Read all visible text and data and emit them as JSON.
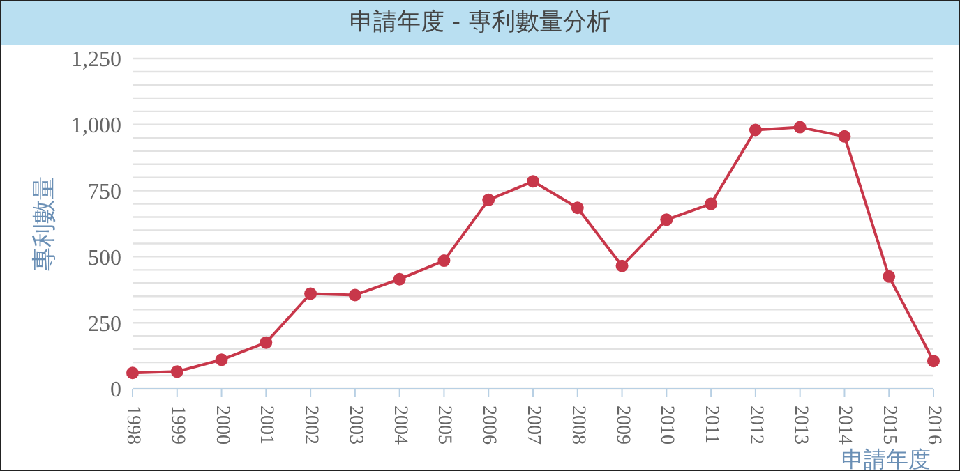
{
  "chart_data": {
    "type": "line",
    "title": "申請年度 - 專利數量分析",
    "xlabel": "申請年度",
    "ylabel": "專利數量",
    "categories": [
      "1998",
      "1999",
      "2000",
      "2001",
      "2002",
      "2003",
      "2004",
      "2005",
      "2006",
      "2007",
      "2008",
      "2009",
      "2010",
      "2011",
      "2012",
      "2013",
      "2014",
      "2015",
      "2016"
    ],
    "series": [
      {
        "color": "#c8374a",
        "values": [
          60,
          65,
          110,
          175,
          360,
          355,
          415,
          485,
          715,
          785,
          685,
          465,
          640,
          700,
          980,
          990,
          955,
          425,
          105
        ]
      }
    ],
    "ylim": [
      0,
      1250
    ],
    "yticks": [
      0,
      {
        "value": 50,
        "label": null
      },
      {
        "value": 100,
        "label": null
      },
      {
        "value": 150,
        "label": null
      },
      {
        "value": 200,
        "label": null
      },
      250,
      {
        "value": 300,
        "label": null
      },
      {
        "value": 350,
        "label": null
      },
      {
        "value": 400,
        "label": null
      },
      {
        "value": 450,
        "label": null
      },
      500,
      {
        "value": 550,
        "label": null
      },
      {
        "value": 600,
        "label": null
      },
      {
        "value": 650,
        "label": null
      },
      {
        "value": 700,
        "label": null
      },
      750,
      {
        "value": 800,
        "label": null
      },
      {
        "value": 850,
        "label": null
      },
      {
        "value": 900,
        "label": null
      },
      {
        "value": 950,
        "label": null
      },
      {
        "value": 1000,
        "label": "1,000"
      },
      {
        "value": 1050,
        "label": null
      },
      {
        "value": 1100,
        "label": null
      },
      {
        "value": 1150,
        "label": null
      },
      {
        "value": 1200,
        "label": null
      },
      {
        "value": 1250,
        "label": "1,250"
      }
    ],
    "grid": "y",
    "legend": false,
    "marker": "circle",
    "line_style": "solid"
  }
}
